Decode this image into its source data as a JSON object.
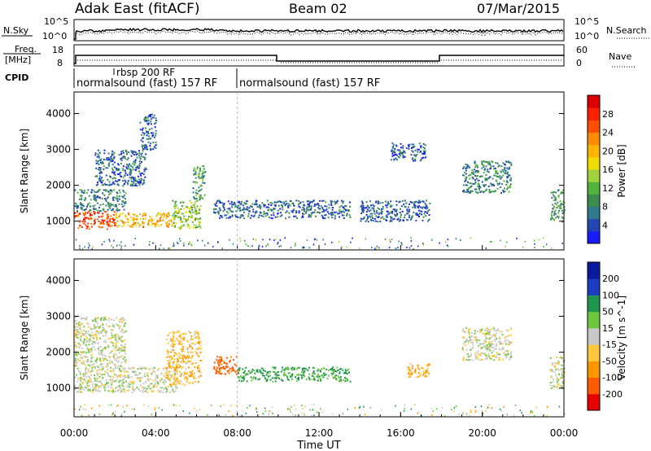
{
  "header": {
    "station": "Adak East (fitACF)",
    "beam": "Beam 02",
    "date": "07/Mar/2015"
  },
  "noise_panel": {
    "left_label": "N.Sky",
    "right_label": "N.Search",
    "left_ticks": [
      "10^5",
      "10^0"
    ],
    "right_ticks": [
      "10^5",
      "10^0"
    ]
  },
  "freq_panel": {
    "left_label_1": "Freq.",
    "left_label_2": "[MHz]",
    "right_label": "Nave",
    "left_ticks": [
      "18",
      "8"
    ],
    "right_ticks": [
      "60",
      "0"
    ]
  },
  "cpid": {
    "label": "CPID",
    "programs": [
      {
        "name": "normalsound (fast) 157 RF",
        "start_hour": 0,
        "end_hour": 8
      },
      {
        "name": "rbsp 200 RF",
        "start_hour": 2,
        "end_hour": 8
      },
      {
        "name": "normalsound (fast) 157 RF",
        "start_hour": 8,
        "end_hour": 24
      }
    ]
  },
  "chart_data": [
    {
      "type": "heatmap",
      "title": "Power",
      "ylabel": "Slant Range [km]",
      "xlabel": "Time UT",
      "x_range_hours": [
        0,
        24
      ],
      "x_ticks": [
        "00:00",
        "04:00",
        "08:00",
        "12:00",
        "16:00",
        "20:00",
        "00:00"
      ],
      "ylim": [
        200,
        4600
      ],
      "y_ticks": [
        1000,
        2000,
        3000,
        4000
      ],
      "colorbar": {
        "label": "Power [dB]",
        "ticks": [
          4,
          8,
          12,
          16,
          20,
          24,
          28
        ],
        "range": [
          0,
          32
        ],
        "colors": [
          "#1a1aff",
          "#2346b4",
          "#2f7a8c",
          "#3c8c50",
          "#50b43c",
          "#a0d23c",
          "#f0dc00",
          "#ffb400",
          "#ff8c00",
          "#ff5000",
          "#ff2000",
          "#dc0000"
        ]
      },
      "regions": [
        {
          "start_hour": 0.0,
          "end_hour": 2.0,
          "range_min": 800,
          "range_max": 1300,
          "value": 26
        },
        {
          "start_hour": 2.0,
          "end_hour": 4.8,
          "range_min": 850,
          "range_max": 1250,
          "value": 20
        },
        {
          "start_hour": 4.8,
          "end_hour": 6.2,
          "range_min": 800,
          "range_max": 1600,
          "value": 14
        },
        {
          "start_hour": 0.0,
          "end_hour": 2.5,
          "range_min": 1300,
          "range_max": 1900,
          "value": 8
        },
        {
          "start_hour": 1.0,
          "end_hour": 3.5,
          "range_min": 2000,
          "range_max": 3000,
          "value": 6
        },
        {
          "start_hour": 3.2,
          "end_hour": 4.0,
          "range_min": 3000,
          "range_max": 4000,
          "value": 6
        },
        {
          "start_hour": 5.8,
          "end_hour": 6.4,
          "range_min": 1600,
          "range_max": 2600,
          "value": 10
        },
        {
          "start_hour": 6.8,
          "end_hour": 13.5,
          "range_min": 1100,
          "range_max": 1600,
          "value": 6
        },
        {
          "start_hour": 14.0,
          "end_hour": 17.4,
          "range_min": 1000,
          "range_max": 1600,
          "value": 5
        },
        {
          "start_hour": 15.5,
          "end_hour": 17.2,
          "range_min": 2700,
          "range_max": 3200,
          "value": 5
        },
        {
          "start_hour": 19.0,
          "end_hour": 21.4,
          "range_min": 1800,
          "range_max": 2700,
          "value": 8
        },
        {
          "start_hour": 23.3,
          "end_hour": 24.0,
          "range_min": 1000,
          "range_max": 1900,
          "value": 10
        }
      ]
    },
    {
      "type": "heatmap",
      "title": "Velocity",
      "ylabel": "Slant Range [km]",
      "xlabel": "Time UT",
      "x_range_hours": [
        0,
        24
      ],
      "x_ticks": [
        "00:00",
        "04:00",
        "08:00",
        "12:00",
        "16:00",
        "20:00",
        "00:00"
      ],
      "ylim": [
        200,
        4600
      ],
      "y_ticks": [
        1000,
        2000,
        3000,
        4000
      ],
      "colorbar": {
        "label": "Velocity [m s^-1]",
        "ticks": [
          200,
          100,
          50,
          15,
          -15,
          -50,
          -100,
          -200
        ],
        "colors": [
          "#0a1aa0",
          "#1f3cc8",
          "#1e9650",
          "#6ec83c",
          "#c8c8c8",
          "#ffc83c",
          "#ff9600",
          "#ff5a00",
          "#e60000"
        ]
      },
      "regions": [
        {
          "start_hour": 0.0,
          "end_hour": 5.0,
          "range_min": 900,
          "range_max": 1600,
          "value": 0
        },
        {
          "start_hour": 0.0,
          "end_hour": 2.5,
          "range_min": 1600,
          "range_max": 3000,
          "value": 0
        },
        {
          "start_hour": 4.5,
          "end_hour": 6.2,
          "range_min": 1100,
          "range_max": 2600,
          "value": -40
        },
        {
          "start_hour": 6.8,
          "end_hour": 8.0,
          "range_min": 1400,
          "range_max": 1900,
          "value": -120
        },
        {
          "start_hour": 8.0,
          "end_hour": 13.5,
          "range_min": 1200,
          "range_max": 1600,
          "value": 60
        },
        {
          "start_hour": 16.3,
          "end_hour": 17.4,
          "range_min": 1300,
          "range_max": 1700,
          "value": -60
        },
        {
          "start_hour": 19.0,
          "end_hour": 21.4,
          "range_min": 1800,
          "range_max": 2700,
          "value": 0
        },
        {
          "start_hour": 23.3,
          "end_hour": 24.0,
          "range_min": 1000,
          "range_max": 1900,
          "value": 0
        }
      ]
    }
  ]
}
